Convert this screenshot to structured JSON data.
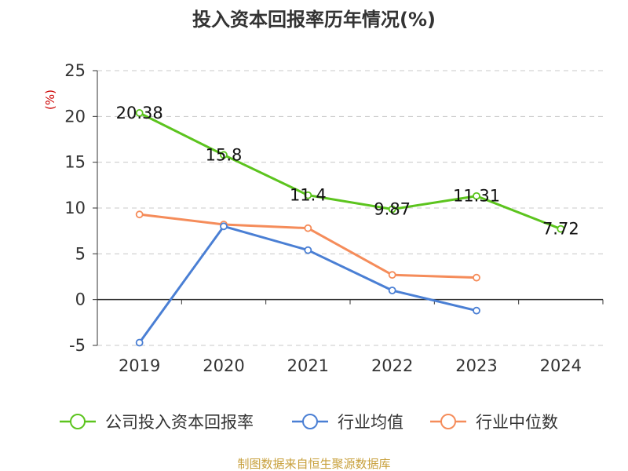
{
  "chart_data": {
    "type": "line",
    "title": "投入资本回报率历年情况(%)",
    "ylabel": "(%)",
    "categories": [
      "2019",
      "2020",
      "2021",
      "2022",
      "2023",
      "2024"
    ],
    "ylim": [
      -5,
      25
    ],
    "yticks": [
      -5,
      0,
      5,
      10,
      15,
      20,
      25
    ],
    "grid": true,
    "legend_position": "bottom",
    "series": [
      {
        "name": "公司投入资本回报率",
        "color": "#5cc41e",
        "values": [
          20.38,
          15.8,
          11.4,
          9.87,
          11.31,
          7.72
        ],
        "labels": [
          "20.38",
          "15.8",
          "11.4",
          "9.87",
          "11.31",
          "7.72"
        ]
      },
      {
        "name": "行业均值",
        "color": "#4a7fd4",
        "values": [
          -4.7,
          8.0,
          5.4,
          1.0,
          -1.2,
          null
        ]
      },
      {
        "name": "行业中位数",
        "color": "#f58c5a",
        "values": [
          9.3,
          8.2,
          7.8,
          2.7,
          2.4,
          null
        ]
      }
    ]
  },
  "source": "制图数据来自恒生聚源数据库"
}
